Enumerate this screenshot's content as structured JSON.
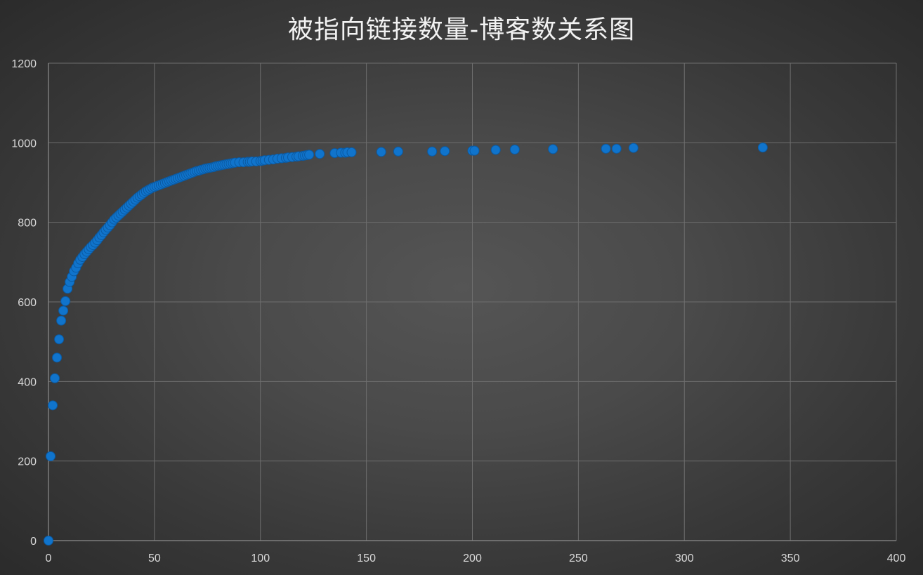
{
  "chart_data": {
    "type": "scatter",
    "title": "被指向链接数量-博客数关系图",
    "xlabel": "",
    "ylabel": "",
    "xlim": [
      0,
      400
    ],
    "ylim": [
      0,
      1200
    ],
    "x_ticks": [
      0,
      50,
      100,
      150,
      200,
      250,
      300,
      350,
      400
    ],
    "y_ticks": [
      0,
      200,
      400,
      600,
      800,
      1000,
      1200
    ],
    "grid": true,
    "colors": {
      "marker": "#1074cc",
      "marker_edge": "#0a5aa3",
      "grid": "#6e6e6e",
      "text": "#d9d9d9",
      "title": "#f2f2f2"
    },
    "series": [
      {
        "x": [
          0,
          1,
          2,
          3,
          4,
          5,
          6,
          7,
          8,
          9,
          10,
          11,
          12,
          13,
          14,
          15,
          16,
          17,
          18,
          19,
          20,
          21,
          22,
          23,
          24,
          25,
          26,
          27,
          28,
          29,
          30,
          31,
          32,
          33,
          34,
          35,
          36,
          37,
          38,
          39,
          40,
          41,
          42,
          43,
          44,
          45,
          46,
          47,
          48,
          49,
          50,
          51,
          52,
          53,
          54,
          55,
          56,
          57,
          58,
          59,
          60,
          61,
          62,
          63,
          64,
          65,
          66,
          67,
          68,
          69,
          70,
          71,
          72,
          73,
          74,
          75,
          76,
          77,
          78,
          79,
          80,
          81,
          82,
          83,
          84,
          85,
          86,
          87,
          88,
          90,
          92,
          94,
          95,
          96,
          98,
          100,
          101,
          102,
          104,
          106,
          108,
          110,
          112,
          113,
          115,
          117,
          118,
          120,
          121,
          122,
          123,
          128,
          135,
          138,
          140,
          141,
          143,
          157,
          165,
          181,
          187,
          200,
          201,
          211,
          220,
          238,
          263,
          268,
          276,
          337
        ],
        "y": [
          0,
          212,
          340,
          408,
          460,
          506,
          553,
          578,
          602,
          633,
          650,
          663,
          677,
          686,
          697,
          706,
          713,
          720,
          726,
          732,
          738,
          743,
          749,
          755,
          762,
          768,
          775,
          781,
          787,
          793,
          800,
          807,
          812,
          817,
          822,
          827,
          832,
          837,
          842,
          847,
          852,
          857,
          862,
          866,
          870,
          874,
          878,
          881,
          884,
          887,
          889,
          891,
          893,
          895,
          897,
          899,
          901,
          903,
          905,
          907,
          909,
          911,
          913,
          915,
          917,
          919,
          921,
          923,
          925,
          927,
          929,
          930,
          932,
          933,
          935,
          936,
          937,
          938,
          939,
          941,
          942,
          943,
          944,
          945,
          946,
          947,
          948,
          949,
          950,
          951,
          951,
          952,
          952,
          953,
          953,
          954,
          955,
          956,
          957,
          958,
          960,
          961,
          962,
          963,
          964,
          965,
          966,
          967,
          968,
          969,
          970,
          972,
          974,
          975,
          975,
          976,
          976,
          977,
          978,
          978,
          979,
          980,
          980,
          982,
          983,
          984,
          985,
          985,
          987,
          988
        ]
      }
    ]
  }
}
